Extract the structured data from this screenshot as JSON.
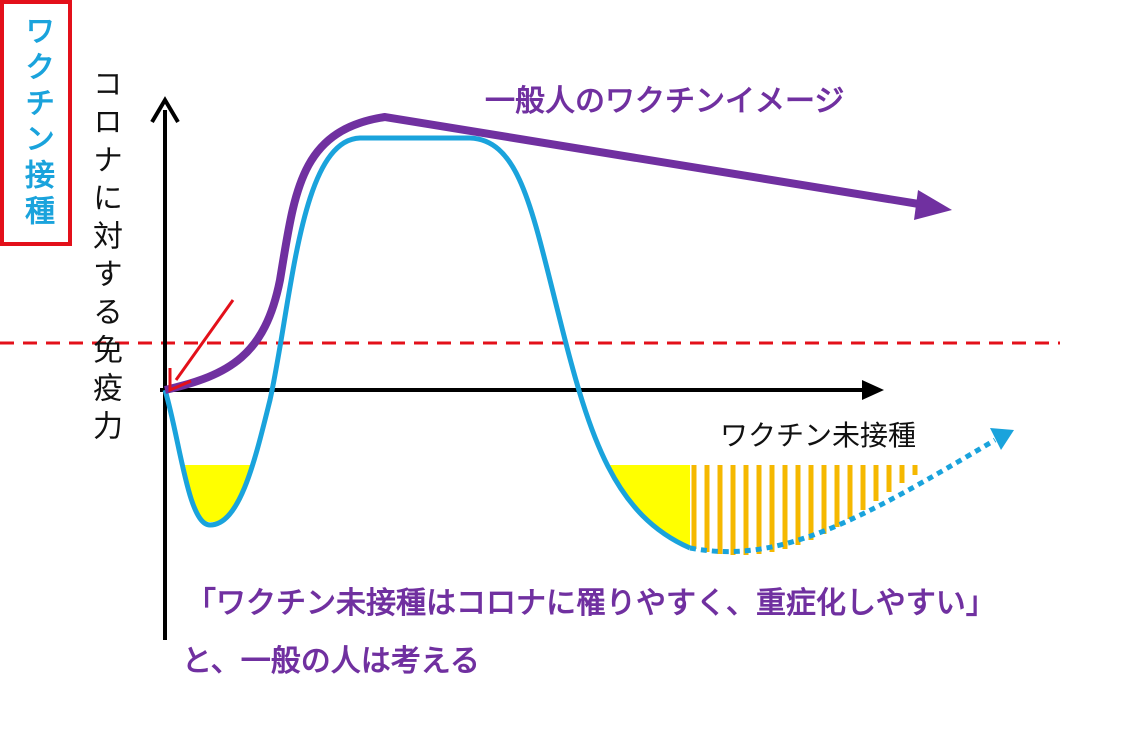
{
  "axis": {
    "y_label": "コロナに対する免疫力"
  },
  "labels": {
    "vaccination": "ワクチン接種",
    "public_image": "一般人のワクチンイメージ",
    "unvaccinated": "ワクチン未接種"
  },
  "caption": {
    "line1": "「ワクチン未接種はコロナに罹りやすく、重症化しやすい」",
    "line2": "と、一般の人は考える"
  }
}
